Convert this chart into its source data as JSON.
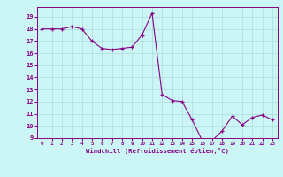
{
  "x": [
    0,
    1,
    2,
    3,
    4,
    5,
    6,
    7,
    8,
    9,
    10,
    11,
    12,
    13,
    14,
    15,
    16,
    17,
    18,
    19,
    20,
    21,
    22,
    23
  ],
  "y": [
    18.0,
    18.0,
    18.0,
    18.2,
    18.0,
    17.0,
    16.4,
    16.3,
    16.4,
    16.5,
    17.5,
    19.3,
    12.6,
    12.1,
    12.0,
    10.5,
    8.8,
    8.8,
    9.6,
    10.8,
    10.1,
    10.7,
    10.9,
    10.5
  ],
  "line_color": "#880088",
  "marker": "+",
  "marker_color": "#880088",
  "bg_color": "#ccf5f5",
  "grid_color": "#aadddd",
  "xlabel": "Windchill (Refroidissement éolien,°C)",
  "xlabel_color": "#880088",
  "tick_color": "#880088",
  "ylim": [
    9,
    19.8
  ],
  "xlim": [
    -0.5,
    23.5
  ],
  "yticks": [
    9,
    10,
    11,
    12,
    13,
    14,
    15,
    16,
    17,
    18,
    19
  ],
  "xticks": [
    0,
    1,
    2,
    3,
    4,
    5,
    6,
    7,
    8,
    9,
    10,
    11,
    12,
    13,
    14,
    15,
    16,
    17,
    18,
    19,
    20,
    21,
    22,
    23
  ],
  "xtick_labels": [
    "0",
    "1",
    "2",
    "3",
    "4",
    "5",
    "6",
    "7",
    "8",
    "9",
    "10",
    "11",
    "12",
    "13",
    "14",
    "15",
    "16",
    "17",
    "18",
    "19",
    "20",
    "21",
    "22",
    "23"
  ]
}
